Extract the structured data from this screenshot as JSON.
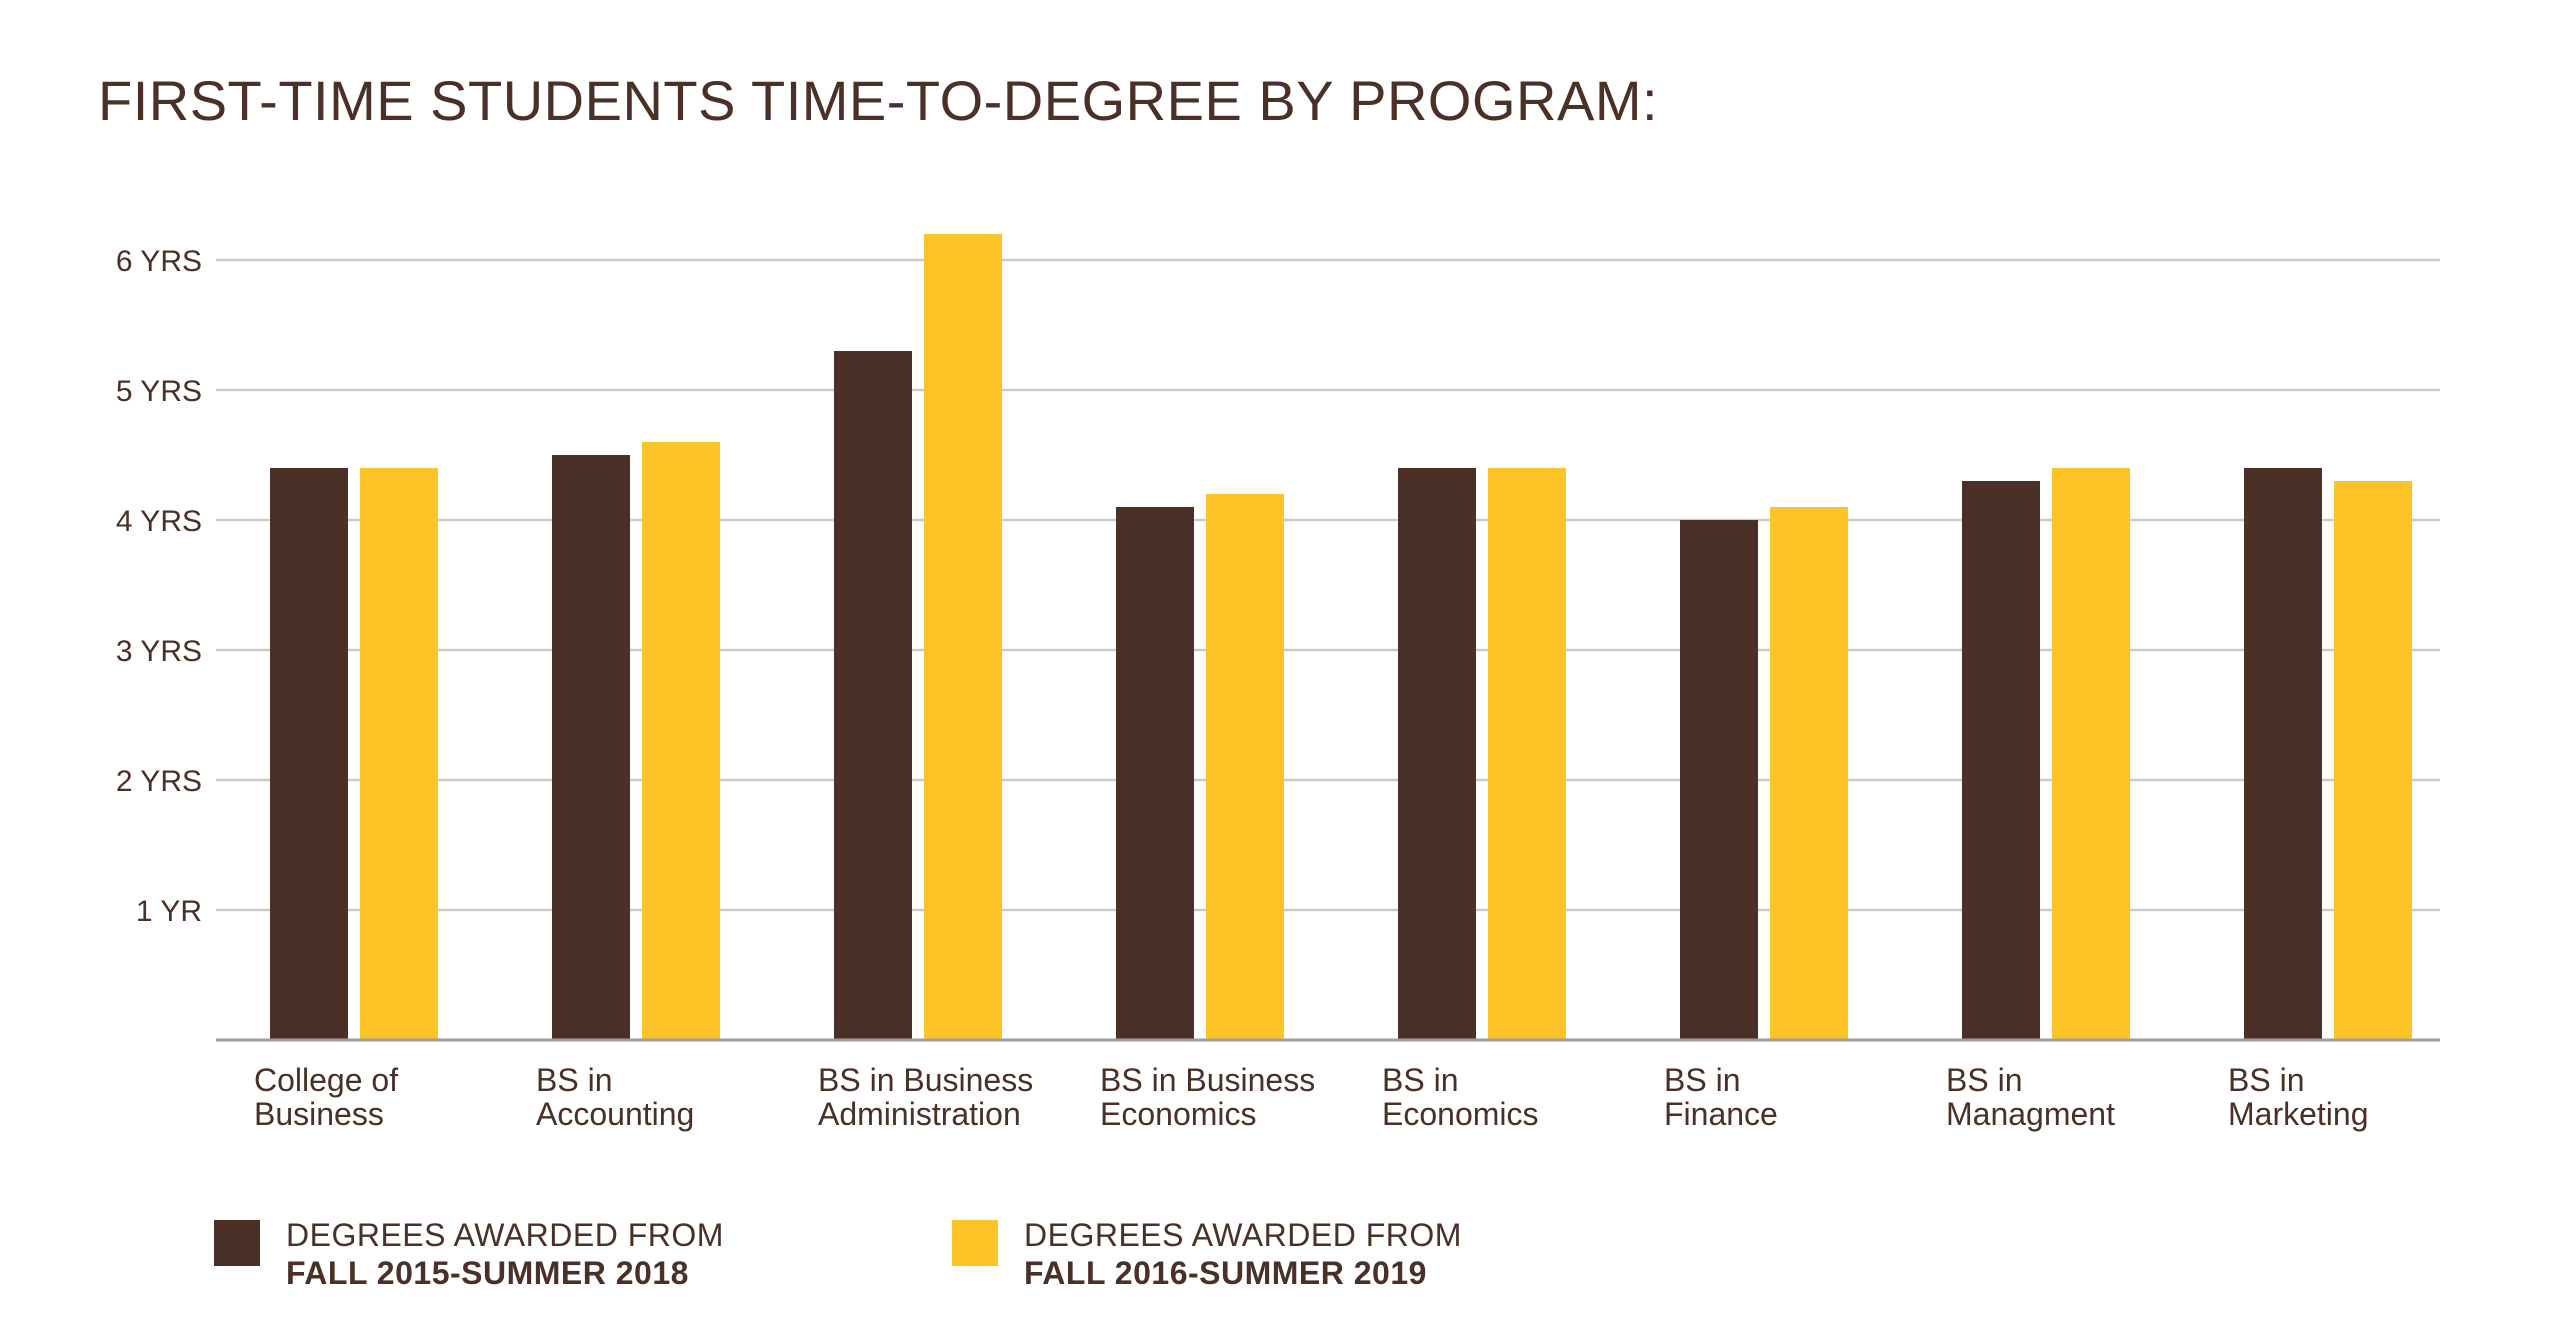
{
  "chart_data": {
    "type": "bar",
    "title": "FIRST-TIME STUDENTS TIME-TO-DEGREE BY PROGRAM:",
    "xlabel": "",
    "ylabel": "",
    "ylim": [
      0,
      6.2
    ],
    "y_ticks": [
      {
        "value": 1,
        "label": "1 YR"
      },
      {
        "value": 2,
        "label": "2 YRS"
      },
      {
        "value": 3,
        "label": "3 YRS"
      },
      {
        "value": 4,
        "label": "4 YRS"
      },
      {
        "value": 5,
        "label": "5 YRS"
      },
      {
        "value": 6,
        "label": "6 YRS"
      }
    ],
    "grid": true,
    "legend_placement": "bottom-left",
    "categories": [
      [
        "College of",
        "Business"
      ],
      [
        "BS in",
        "Accounting"
      ],
      [
        "BS in Business",
        "Administration"
      ],
      [
        "BS in Business",
        "Economics"
      ],
      [
        "BS in",
        "Economics"
      ],
      [
        "BS in",
        "Finance"
      ],
      [
        "BS in",
        "Managment"
      ],
      [
        "BS in",
        "Marketing"
      ]
    ],
    "series": [
      {
        "name": "DEGREES AWARDED FROM FALL 2015-SUMMER 2018",
        "legend_line1": "DEGREES AWARDED FROM",
        "legend_line2": "FALL 2015-SUMMER 2018",
        "color": "#4a3026",
        "values": [
          4.4,
          4.5,
          5.3,
          4.1,
          4.4,
          4.0,
          4.3,
          4.4
        ]
      },
      {
        "name": "DEGREES AWARDED FROM FALL 2016-SUMMER 2019",
        "legend_line1": "DEGREES AWARDED FROM",
        "legend_line2": "FALL 2016-SUMMER 2019",
        "color": "#fdc428",
        "values": [
          4.4,
          4.6,
          6.2,
          4.2,
          4.4,
          4.1,
          4.4,
          4.3
        ]
      }
    ],
    "gridline_color": "#cfc9c8",
    "axis_color": "#9e9e9e"
  }
}
